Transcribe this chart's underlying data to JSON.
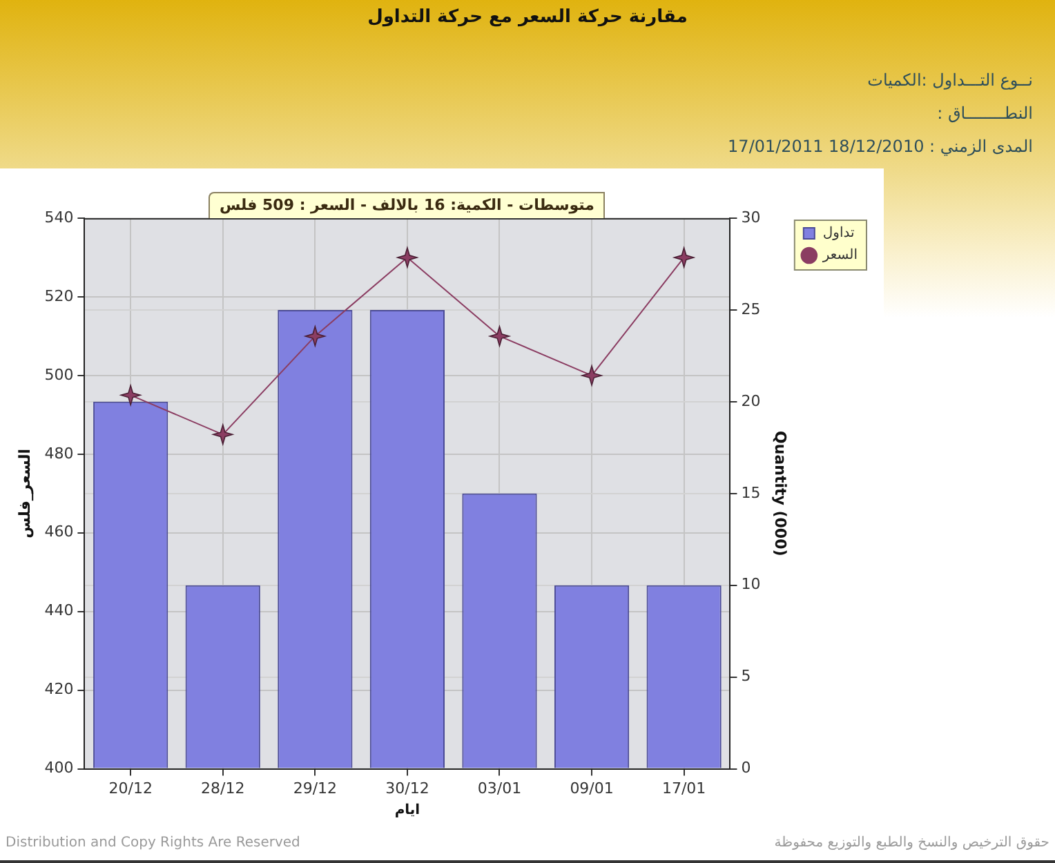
{
  "chart_data": {
    "type": "bar",
    "title": "مقارنة حركة السعر مع حركة التداول",
    "xlabel": "ايام",
    "ylabel": "السعر_فلس",
    "y2label": "Quantity (000)",
    "categories": [
      "20/12",
      "28/12",
      "29/12",
      "30/12",
      "03/01",
      "09/01",
      "17/01"
    ],
    "series": [
      {
        "name": "تداول",
        "axis": "y2",
        "color": "#8080e0",
        "values": [
          20,
          10,
          25,
          25,
          15,
          10,
          10
        ]
      },
      {
        "name": "السعر",
        "type": "line",
        "color": "#8b3d62",
        "values": [
          495,
          485,
          510,
          530,
          510,
          500,
          530
        ]
      }
    ],
    "ylim": [
      400,
      540
    ],
    "yticks": [
      400,
      420,
      440,
      460,
      480,
      500,
      520,
      540
    ],
    "y2lim": [
      0,
      30
    ],
    "y2ticks": [
      0,
      5,
      10,
      15,
      20,
      25,
      30
    ],
    "grid": true,
    "legend": "top right",
    "marker": "star",
    "line_style": "solid",
    "annotations": [
      "متوسطات - الكمية: 16 بالالف  - السعر : 509 فلس",
      "نــوع التـــداول :الكميات",
      "النطــــــــاق :",
      "المدى الزمني : 18/12/2010 17/01/2011",
      "حقوق الترخيص والنسخ والطبع والتوزيع محفوظة",
      "Distribution and Copy Rights Are Reserved"
    ]
  }
}
